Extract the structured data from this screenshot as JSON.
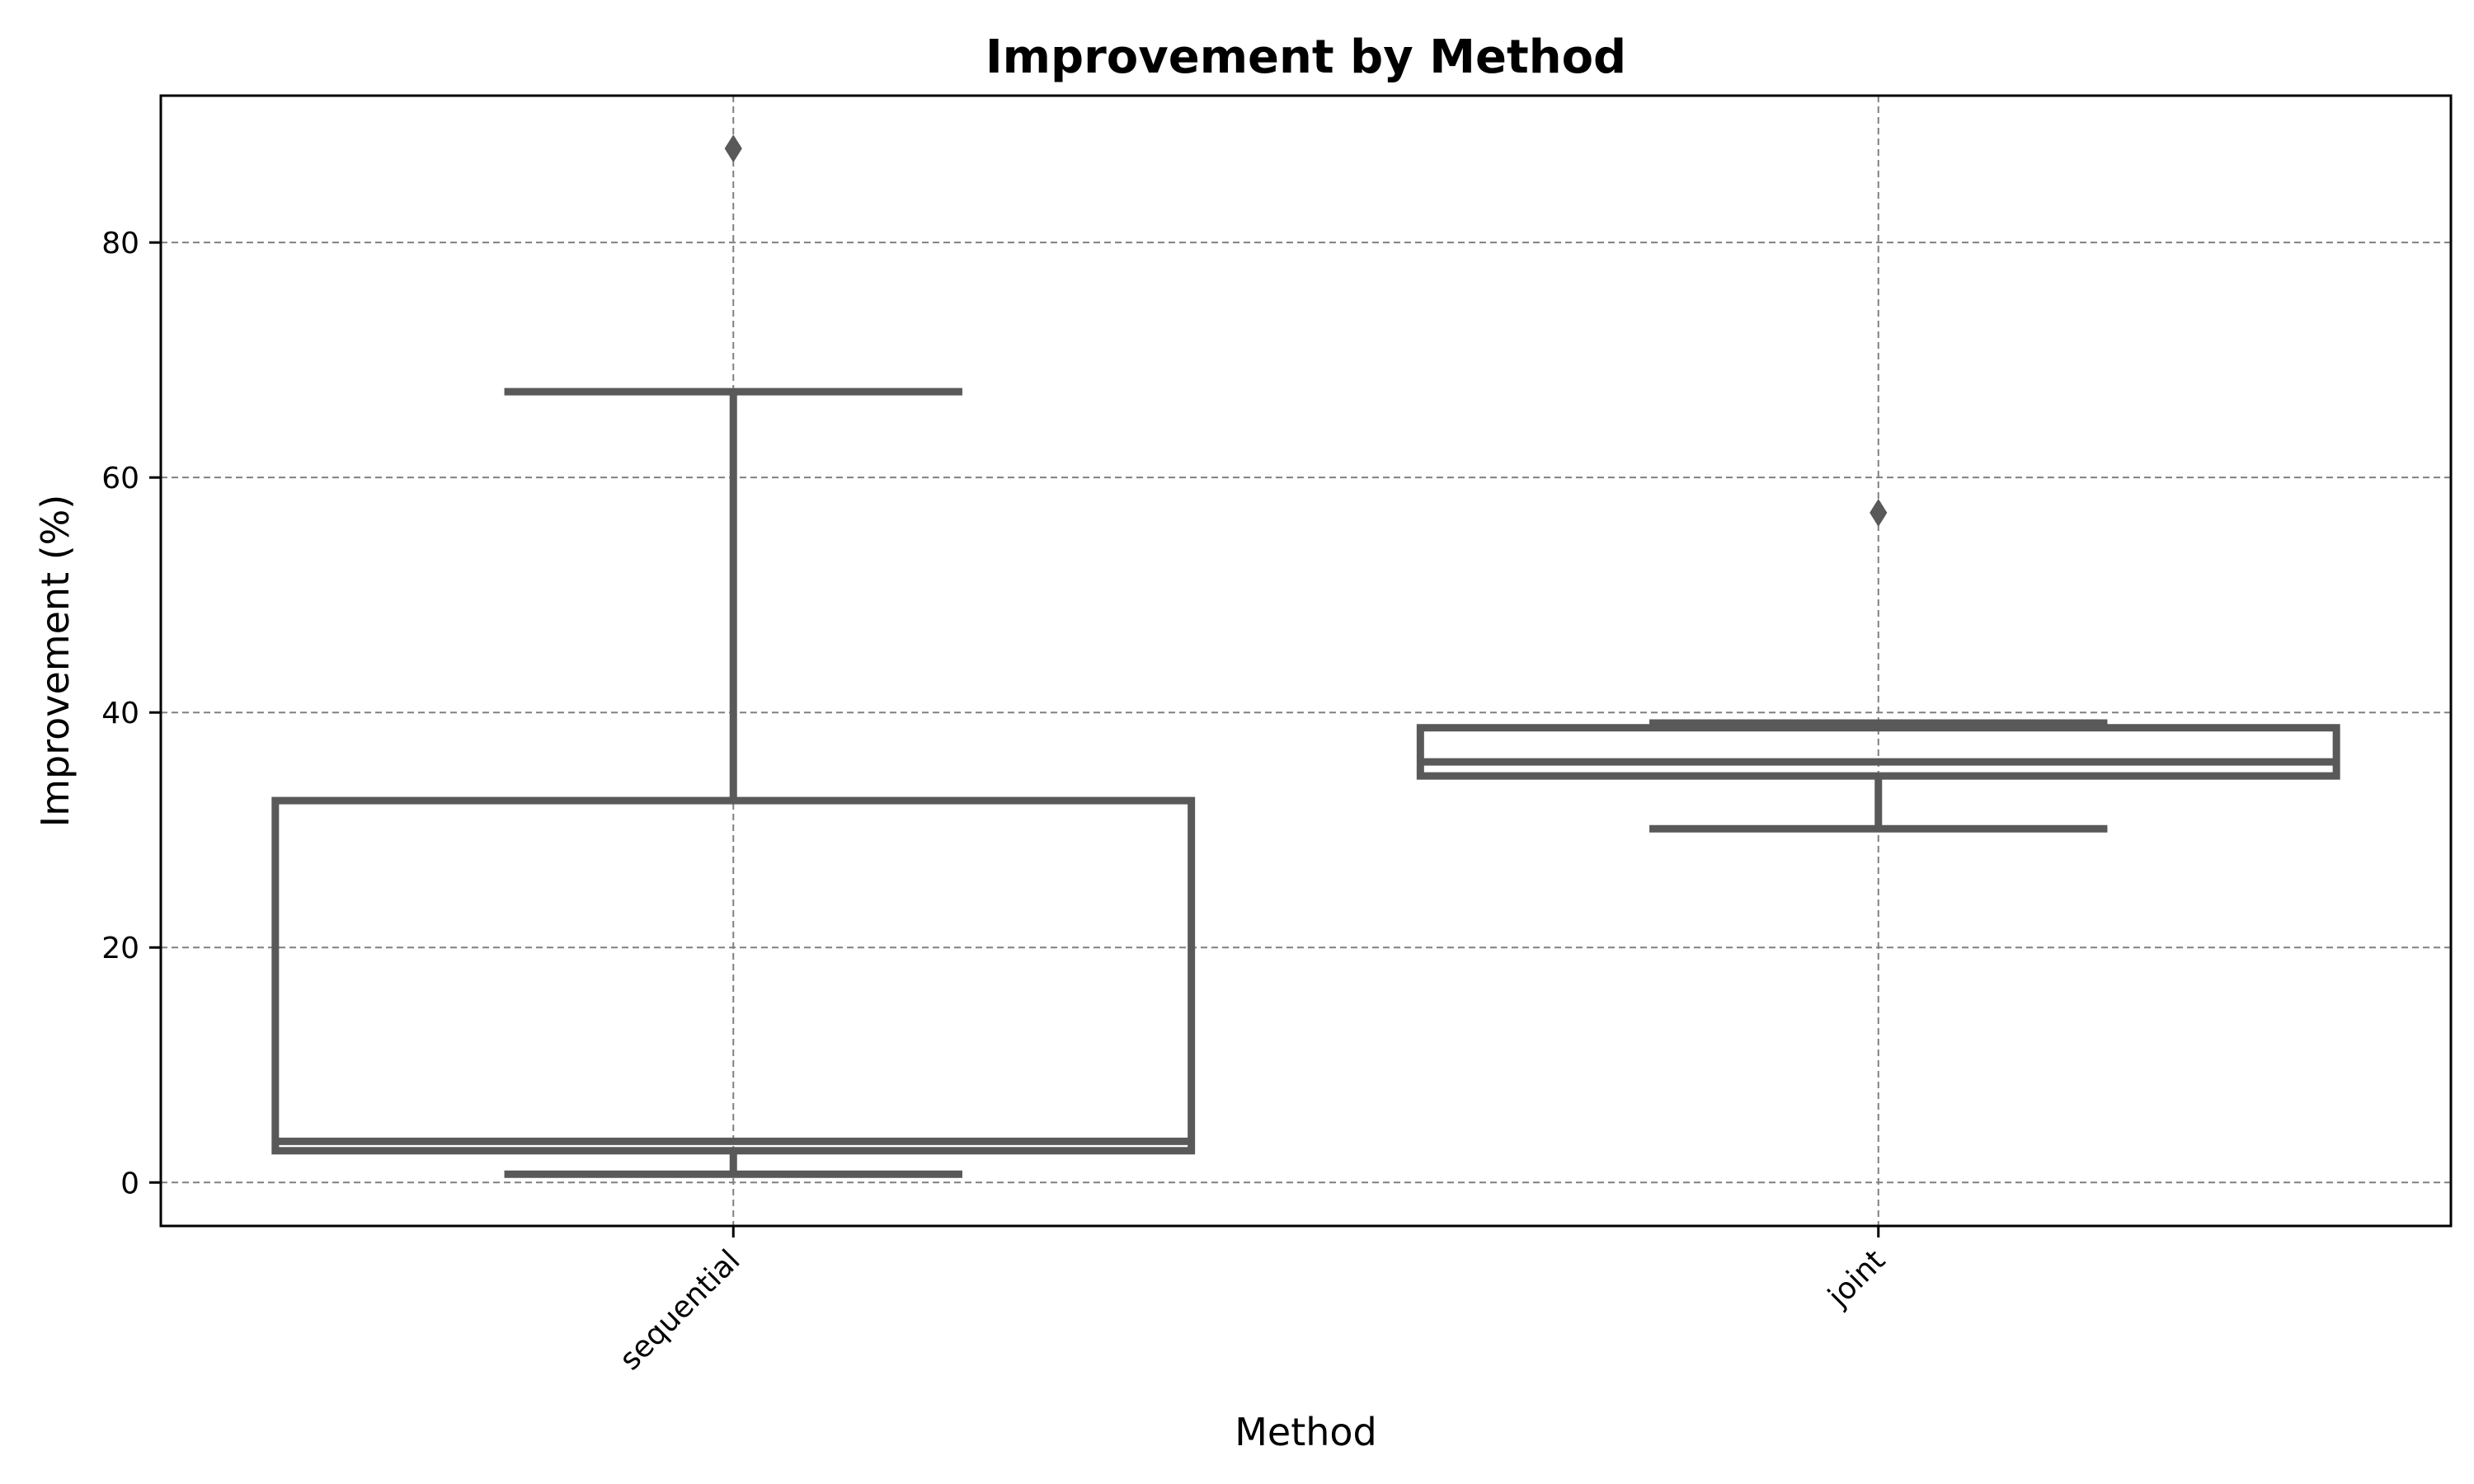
{
  "chart_data": {
    "type": "box",
    "title": "Improvement by Method",
    "xlabel": "Method",
    "ylabel": "Improvement (%)",
    "categories": [
      "sequential",
      "joint"
    ],
    "y_ticks": [
      0,
      20,
      40,
      60,
      80
    ],
    "ylim": [
      -3.7,
      92.5
    ],
    "grid": true,
    "colors": {
      "box": "#595959",
      "grid": "#808080",
      "frame": "#000000"
    },
    "boxes": [
      {
        "category": "sequential",
        "whisker_low": 0.7,
        "q1": 2.7,
        "median": 3.5,
        "q3": 32.5,
        "whisker_high": 67.3,
        "outliers": [
          88.0
        ]
      },
      {
        "category": "joint",
        "whisker_low": 30.1,
        "q1": 34.6,
        "median": 35.8,
        "q3": 38.7,
        "whisker_high": 39.1,
        "outliers": [
          57.0
        ]
      }
    ]
  }
}
